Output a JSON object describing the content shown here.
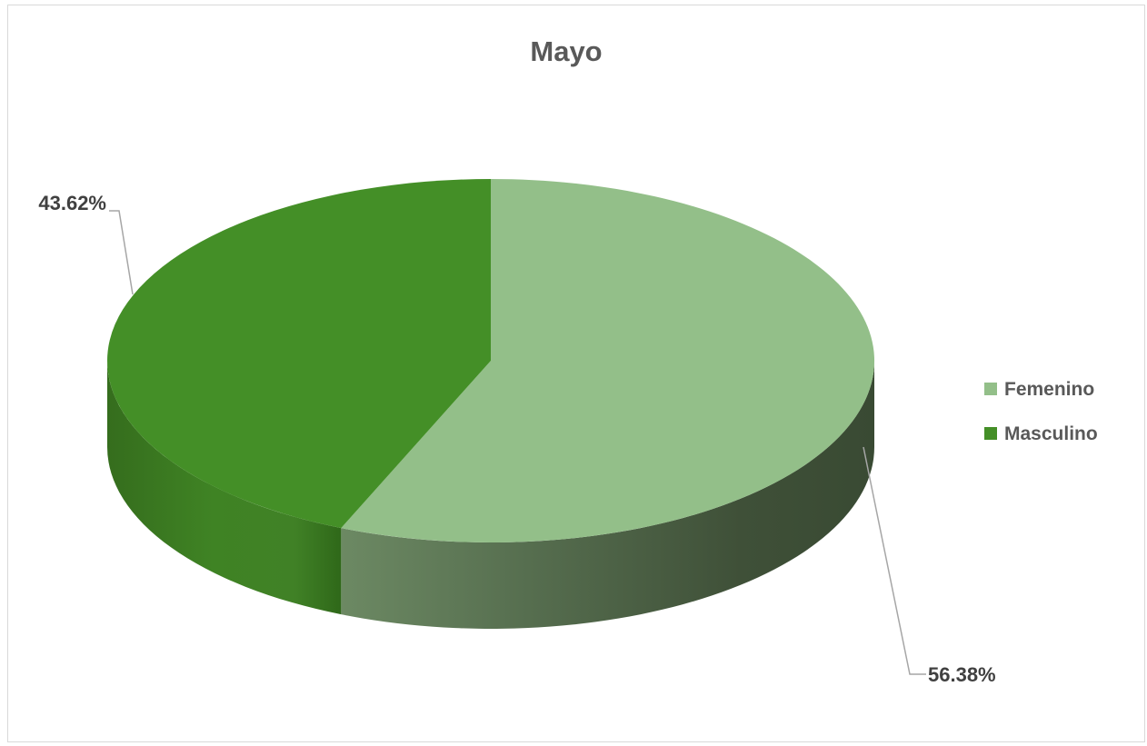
{
  "chart_data": {
    "type": "pie",
    "title": "Mayo",
    "categories": [
      "Femenino",
      "Masculino"
    ],
    "values": [
      56.38,
      43.62
    ],
    "data_labels": [
      "56.38%",
      "43.62%"
    ],
    "series": [
      {
        "values": [
          56.38,
          43.62
        ]
      }
    ],
    "colors": {
      "Femenino": "#93bf89",
      "Masculino": "#448f27"
    },
    "legend": {
      "position": "right",
      "entries": [
        "Femenino",
        "Masculino"
      ]
    },
    "style": "3d-pie"
  }
}
